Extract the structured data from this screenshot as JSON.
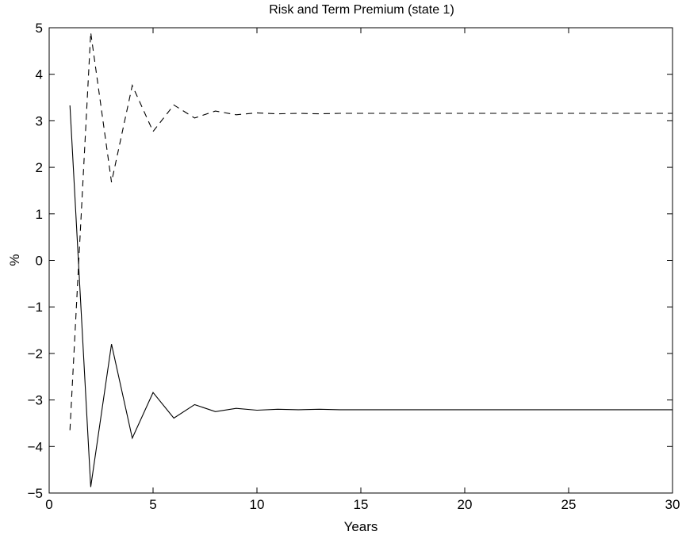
{
  "chart_data": {
    "type": "line",
    "title": "Risk and Term Premium (state 1)",
    "xlabel": "Years",
    "ylabel": "%",
    "xlim": [
      0,
      30
    ],
    "ylim": [
      -5,
      5
    ],
    "xticks": [
      "0",
      "5",
      "10",
      "15",
      "20",
      "25",
      "30"
    ],
    "yticks": [
      "5",
      "4",
      "3",
      "2",
      "1",
      "0",
      "−1",
      "−2",
      "−3",
      "−4",
      "−5"
    ],
    "grid": false,
    "legend": "none",
    "x": [
      1,
      2,
      3,
      4,
      5,
      6,
      7,
      8,
      9,
      10,
      11,
      12,
      13,
      14,
      15,
      16,
      17,
      18,
      19,
      20,
      21,
      22,
      23,
      24,
      25,
      26,
      27,
      28,
      29,
      30
    ],
    "series": [
      {
        "style": "solid",
        "color": "#000000",
        "values": [
          3.33,
          -4.87,
          -1.8,
          -3.82,
          -2.84,
          -3.39,
          -3.1,
          -3.25,
          -3.18,
          -3.22,
          -3.2,
          -3.21,
          -3.2,
          -3.21,
          -3.21,
          -3.21,
          -3.21,
          -3.21,
          -3.21,
          -3.21,
          -3.21,
          -3.21,
          -3.21,
          -3.21,
          -3.21,
          -3.21,
          -3.21,
          -3.21,
          -3.21,
          -3.21
        ]
      },
      {
        "style": "dashed",
        "color": "#000000",
        "values": [
          -3.65,
          4.9,
          1.68,
          3.76,
          2.77,
          3.34,
          3.06,
          3.21,
          3.13,
          3.17,
          3.15,
          3.16,
          3.15,
          3.16,
          3.16,
          3.16,
          3.16,
          3.16,
          3.16,
          3.16,
          3.16,
          3.16,
          3.16,
          3.16,
          3.16,
          3.16,
          3.16,
          3.16,
          3.16,
          3.16
        ]
      }
    ]
  }
}
